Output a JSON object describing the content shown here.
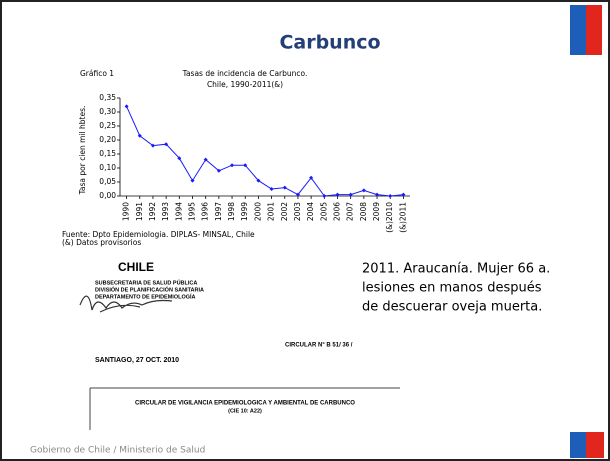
{
  "title": "Carbunco",
  "footer": "Gobierno de Chile / Ministerio de Salud",
  "chart_label": "Gráfico 1",
  "chart_data": {
    "type": "line",
    "title": [
      "Tasas de incidencia de Carbunco.",
      "Chile, 1990-2011(&)"
    ],
    "y_label": "Tasa por cien mil hbtes.",
    "categories": [
      "1990",
      "1991",
      "1992",
      "1993",
      "1994",
      "1995",
      "1996",
      "1997",
      "1998",
      "1999",
      "2000",
      "2001",
      "2002",
      "2003",
      "2004",
      "2005",
      "2006",
      "2007",
      "2008",
      "2009",
      "(&)2010",
      "(&)2011"
    ],
    "values": [
      0.32,
      0.215,
      0.18,
      0.185,
      0.135,
      0.055,
      0.13,
      0.09,
      0.11,
      0.11,
      0.055,
      0.025,
      0.03,
      0.005,
      0.065,
      0.0,
      0.005,
      0.005,
      0.02,
      0.005,
      0.0,
      0.005
    ],
    "color": "#1a1aff",
    "ylim": [
      0,
      0.35
    ],
    "yticks": [
      {
        "value": 0,
        "label": "0,00"
      },
      {
        "value": 0.05,
        "label": "0,05"
      },
      {
        "value": 0.1,
        "label": "0,10"
      },
      {
        "value": 0.15,
        "label": "0,15"
      },
      {
        "value": 0.2,
        "label": "0,20"
      },
      {
        "value": 0.25,
        "label": "0,25"
      },
      {
        "value": 0.3,
        "label": "0,30"
      },
      {
        "value": 0.35,
        "label": "0,35"
      }
    ]
  },
  "source": [
    "Fuente: Dpto Epidemiologia. DIPLAS- MINSAL, Chile",
    "(&) Datos provisorios"
  ],
  "note": [
    "2011. Araucanía. Mujer 66 a.",
    "lesiones en manos después",
    "de descuerar oveja muerta."
  ],
  "document": {
    "country": "CHILE",
    "header": [
      "SUBSECRETARIA DE SALUD PÚBLICA",
      "DIVISIÓN DE PLANIFICACIÓN SANITARIA",
      "DEPARTAMENTO DE EPIDEMIOLOGÍA"
    ],
    "number": "CIRCULAR N° B 51/ 36 /",
    "date": "SANTIAGO, 27 OCT. 2010",
    "subject": [
      "CIRCULAR DE VIGILANCIA EPIDEMIOLOGICA Y AMBIENTAL DE CARBUNCO",
      "(CIE 10: A22)"
    ]
  }
}
